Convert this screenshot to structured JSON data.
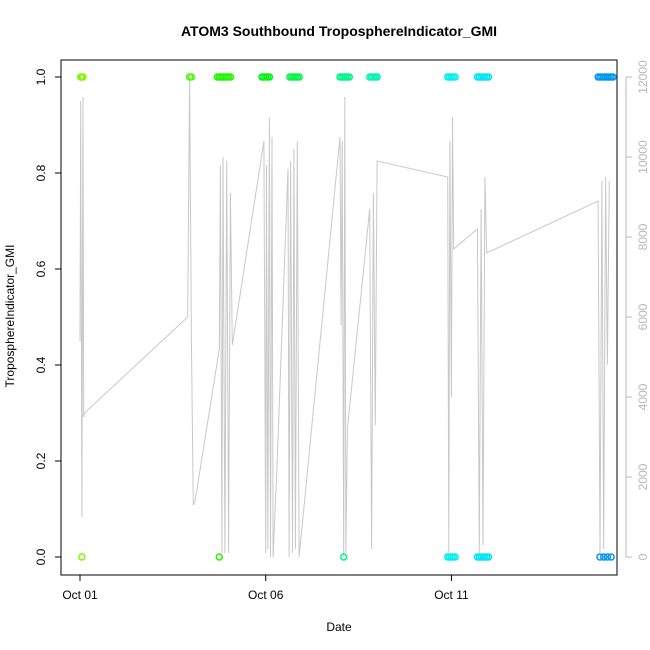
{
  "chart_data": {
    "type": "scatter",
    "title": "ATOM3 Southbound TroposphereIndicator_GMI",
    "xlabel": "Date",
    "ylabel": "TroposphereIndicator_GMI",
    "x_ticks": [
      "Oct 01",
      "Oct 06",
      "Oct 11"
    ],
    "xlim": [
      0.0,
      14.0
    ],
    "ylim": [
      0.0,
      1.0
    ],
    "y_ticks": [
      "0.0",
      "0.2",
      "0.4",
      "0.6",
      "0.8",
      "1.0"
    ],
    "y2_ticks": [
      "0",
      "2000",
      "4000",
      "6000",
      "8000",
      "10000",
      "12000"
    ],
    "y2lim": [
      0,
      12000
    ],
    "grid": false,
    "colors": {
      "axis": "#000000",
      "secondary_axis": "#b8b8b8",
      "altitude_line": "#c8c8c8"
    },
    "series": [
      {
        "points": [
          {
            "x": 0.02,
            "y": 1,
            "color": "#7CFC00"
          },
          {
            "x": 0.05,
            "y": 1,
            "color": "#7CFC00"
          },
          {
            "x": 0.08,
            "y": 1,
            "color": "#7CFC00"
          },
          {
            "x": 0.05,
            "y": 0,
            "color": "#7CFC00"
          },
          {
            "x": 2.95,
            "y": 1,
            "color": "#4CFC00"
          },
          {
            "x": 3.0,
            "y": 1,
            "color": "#4CFC00"
          },
          {
            "x": 3.7,
            "y": 1,
            "color": "#22F500"
          },
          {
            "x": 3.75,
            "y": 1,
            "color": "#22F500"
          },
          {
            "x": 3.8,
            "y": 1,
            "color": "#22F500"
          },
          {
            "x": 3.85,
            "y": 1,
            "color": "#22F500"
          },
          {
            "x": 3.9,
            "y": 1,
            "color": "#22F500"
          },
          {
            "x": 3.95,
            "y": 1,
            "color": "#22F500"
          },
          {
            "x": 4.0,
            "y": 1,
            "color": "#22F500"
          },
          {
            "x": 4.05,
            "y": 1,
            "color": "#22F500"
          },
          {
            "x": 3.75,
            "y": 0,
            "color": "#22F500"
          },
          {
            "x": 4.9,
            "y": 1,
            "color": "#00F510"
          },
          {
            "x": 4.95,
            "y": 1,
            "color": "#00F510"
          },
          {
            "x": 5.0,
            "y": 1,
            "color": "#00F510"
          },
          {
            "x": 5.05,
            "y": 1,
            "color": "#00F510"
          },
          {
            "x": 5.1,
            "y": 1,
            "color": "#00F510"
          },
          {
            "x": 5.65,
            "y": 1,
            "color": "#00F545"
          },
          {
            "x": 5.7,
            "y": 1,
            "color": "#00F545"
          },
          {
            "x": 5.75,
            "y": 1,
            "color": "#00F545"
          },
          {
            "x": 5.8,
            "y": 1,
            "color": "#00F545"
          },
          {
            "x": 5.85,
            "y": 1,
            "color": "#00F545"
          },
          {
            "x": 5.9,
            "y": 1,
            "color": "#00F545"
          },
          {
            "x": 7.0,
            "y": 1,
            "color": "#00F58A"
          },
          {
            "x": 7.05,
            "y": 1,
            "color": "#00F58A"
          },
          {
            "x": 7.1,
            "y": 1,
            "color": "#00F58A"
          },
          {
            "x": 7.15,
            "y": 1,
            "color": "#00F58A"
          },
          {
            "x": 7.2,
            "y": 1,
            "color": "#00F58A"
          },
          {
            "x": 7.25,
            "y": 1,
            "color": "#00F58A"
          },
          {
            "x": 7.1,
            "y": 0,
            "color": "#00F58A"
          },
          {
            "x": 7.8,
            "y": 1,
            "color": "#00F5B0"
          },
          {
            "x": 7.85,
            "y": 1,
            "color": "#00F5B0"
          },
          {
            "x": 7.9,
            "y": 1,
            "color": "#00F5B0"
          },
          {
            "x": 7.95,
            "y": 1,
            "color": "#00F5B0"
          },
          {
            "x": 8.0,
            "y": 1,
            "color": "#00F5B0"
          },
          {
            "x": 9.9,
            "y": 1,
            "color": "#00F0F0"
          },
          {
            "x": 9.95,
            "y": 1,
            "color": "#00F0F0"
          },
          {
            "x": 10.0,
            "y": 1,
            "color": "#00F0F0"
          },
          {
            "x": 10.05,
            "y": 1,
            "color": "#00F0F0"
          },
          {
            "x": 10.1,
            "y": 1,
            "color": "#00F0F0"
          },
          {
            "x": 9.9,
            "y": 0,
            "color": "#00F0F0"
          },
          {
            "x": 9.95,
            "y": 0,
            "color": "#00F0F0"
          },
          {
            "x": 10.0,
            "y": 0,
            "color": "#00F0F0"
          },
          {
            "x": 10.05,
            "y": 0,
            "color": "#00F0F0"
          },
          {
            "x": 10.1,
            "y": 0,
            "color": "#00F0F0"
          },
          {
            "x": 10.7,
            "y": 1,
            "color": "#00E6F5"
          },
          {
            "x": 10.75,
            "y": 1,
            "color": "#00E6F5"
          },
          {
            "x": 10.8,
            "y": 1,
            "color": "#00E6F5"
          },
          {
            "x": 10.85,
            "y": 1,
            "color": "#00E6F5"
          },
          {
            "x": 10.9,
            "y": 1,
            "color": "#00E6F5"
          },
          {
            "x": 10.95,
            "y": 1,
            "color": "#00E6F5"
          },
          {
            "x": 11.0,
            "y": 1,
            "color": "#00E6F5"
          },
          {
            "x": 10.7,
            "y": 0,
            "color": "#00E6F5"
          },
          {
            "x": 10.75,
            "y": 0,
            "color": "#00E6F5"
          },
          {
            "x": 10.8,
            "y": 0,
            "color": "#00E6F5"
          },
          {
            "x": 10.85,
            "y": 0,
            "color": "#00E6F5"
          },
          {
            "x": 10.9,
            "y": 0,
            "color": "#00E6F5"
          },
          {
            "x": 10.95,
            "y": 0,
            "color": "#00E6F5"
          },
          {
            "x": 11.0,
            "y": 0,
            "color": "#00E6F5"
          },
          {
            "x": 13.95,
            "y": 1,
            "color": "#0096F0"
          },
          {
            "x": 14.0,
            "y": 1,
            "color": "#0096F0"
          },
          {
            "x": 14.05,
            "y": 1,
            "color": "#0096F0"
          },
          {
            "x": 14.1,
            "y": 1,
            "color": "#0096F0"
          },
          {
            "x": 14.15,
            "y": 1,
            "color": "#0096F0"
          },
          {
            "x": 14.2,
            "y": 1,
            "color": "#0096F0"
          },
          {
            "x": 14.25,
            "y": 1,
            "color": "#0096F0"
          },
          {
            "x": 14.3,
            "y": 1,
            "color": "#0096F0"
          },
          {
            "x": 14.35,
            "y": 1,
            "color": "#0096F0"
          },
          {
            "x": 14.0,
            "y": 0,
            "color": "#0096F0"
          },
          {
            "x": 14.1,
            "y": 0,
            "color": "#0096F0"
          },
          {
            "x": 14.2,
            "y": 0,
            "color": "#0096F0"
          },
          {
            "x": 14.3,
            "y": 0,
            "color": "#0096F0"
          }
        ]
      },
      {
        "axis": "right",
        "color": "#c8c8c8",
        "points": [
          [
            0.0,
            5400
          ],
          [
            0.02,
            11400
          ],
          [
            0.05,
            1000
          ],
          [
            0.08,
            11500
          ],
          [
            0.1,
            3500
          ],
          [
            0.12,
            3600
          ],
          [
            2.9,
            6000
          ],
          [
            2.95,
            12000
          ],
          [
            3.0,
            5400
          ],
          [
            3.05,
            1300
          ],
          [
            3.1,
            1400
          ],
          [
            3.75,
            5200
          ],
          [
            3.78,
            9800
          ],
          [
            3.82,
            100
          ],
          [
            3.85,
            10000
          ],
          [
            3.9,
            100
          ],
          [
            3.95,
            9900
          ],
          [
            4.0,
            100
          ],
          [
            4.05,
            9100
          ],
          [
            4.1,
            5300
          ],
          [
            4.95,
            10400
          ],
          [
            5.0,
            100
          ],
          [
            5.02,
            9800
          ],
          [
            5.06,
            200
          ],
          [
            5.1,
            11000
          ],
          [
            5.13,
            0
          ],
          [
            5.17,
            10500
          ],
          [
            5.2,
            0
          ],
          [
            5.3,
            2200
          ],
          [
            5.6,
            9700
          ],
          [
            5.63,
            0
          ],
          [
            5.67,
            9900
          ],
          [
            5.72,
            100
          ],
          [
            5.76,
            10200
          ],
          [
            5.8,
            200
          ],
          [
            5.85,
            10400
          ],
          [
            5.9,
            0
          ],
          [
            7.0,
            10500
          ],
          [
            7.03,
            5800
          ],
          [
            7.06,
            10400
          ],
          [
            7.1,
            0
          ],
          [
            7.13,
            11500
          ],
          [
            7.16,
            100
          ],
          [
            7.2,
            3200
          ],
          [
            7.8,
            8700
          ],
          [
            7.85,
            200
          ],
          [
            7.9,
            9100
          ],
          [
            7.95,
            3300
          ],
          [
            8.0,
            9900
          ],
          [
            9.9,
            9500
          ],
          [
            9.93,
            100
          ],
          [
            9.96,
            10400
          ],
          [
            10.0,
            4000
          ],
          [
            10.03,
            11000
          ],
          [
            10.06,
            7700
          ],
          [
            10.7,
            8200
          ],
          [
            10.75,
            100
          ],
          [
            10.8,
            8700
          ],
          [
            10.85,
            300
          ],
          [
            10.9,
            9500
          ],
          [
            10.95,
            7600
          ],
          [
            13.95,
            8900
          ],
          [
            14.0,
            100
          ],
          [
            14.05,
            9400
          ],
          [
            14.1,
            200
          ],
          [
            14.15,
            9500
          ],
          [
            14.2,
            4800
          ],
          [
            14.25,
            9400
          ]
        ]
      }
    ]
  }
}
